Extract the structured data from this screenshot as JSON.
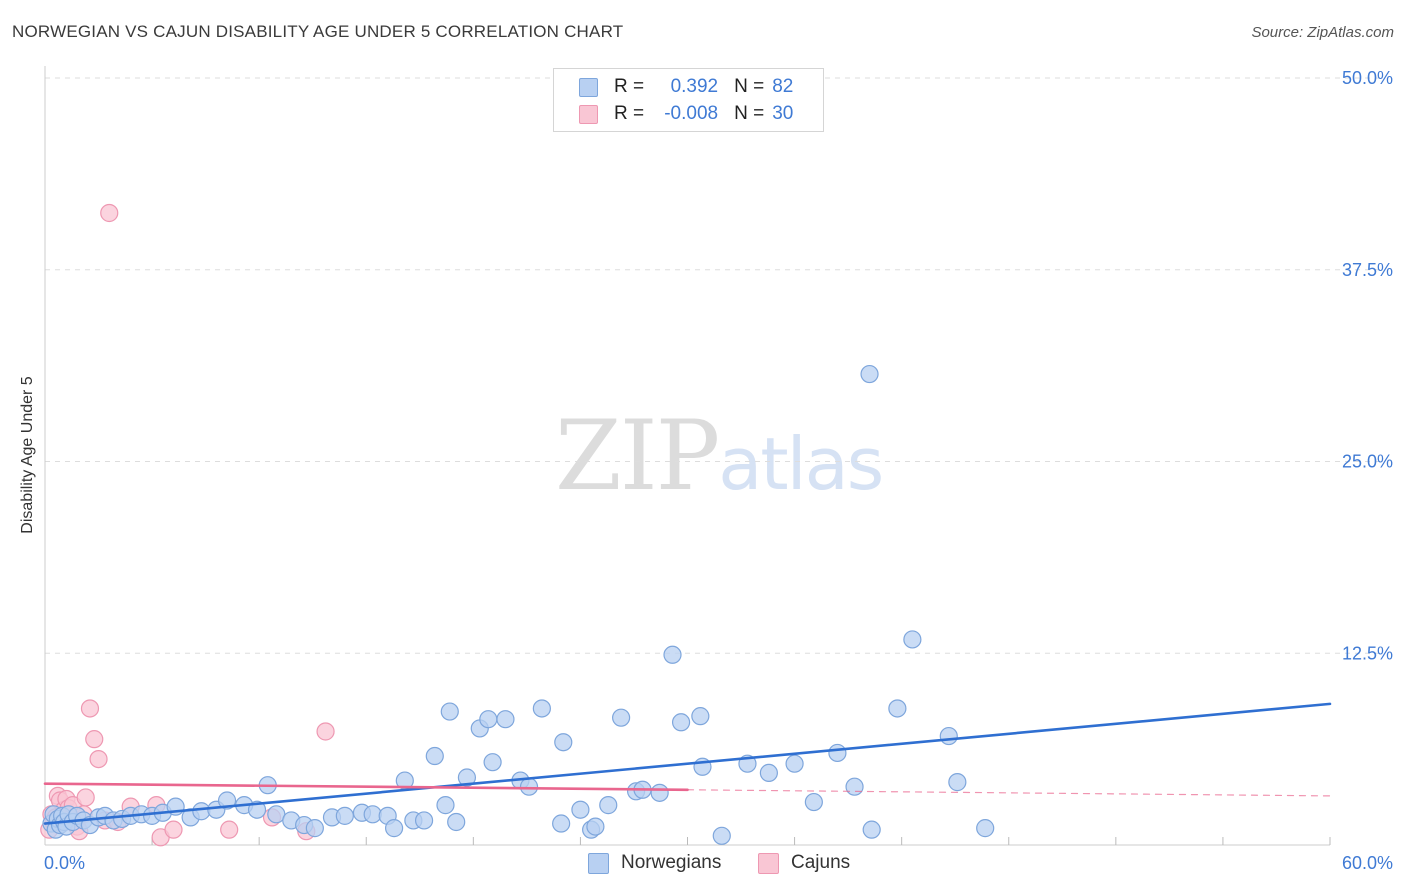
{
  "header": {
    "title": "NORWEGIAN VS CAJUN DISABILITY AGE UNDER 5 CORRELATION CHART",
    "source": "Source: ZipAtlas.com"
  },
  "watermark": {
    "zip": "ZIP",
    "atlas": "atlas"
  },
  "legend": {
    "r_label": "R =",
    "n_label": "N =",
    "norwegians": {
      "r": "0.392",
      "n": "82"
    },
    "cajuns": {
      "r": "-0.008",
      "n": "30"
    }
  },
  "colors": {
    "norwegian_fill": "#b8d0f2",
    "norwegian_stroke": "#7ea6dc",
    "norwegian_line": "#2f6fd1",
    "cajun_fill": "#f9c6d4",
    "cajun_stroke": "#ee98b2",
    "cajun_line": "#e9668e",
    "tick_color": "#3f7ad4",
    "grid": "#dddddd"
  },
  "chart_data": {
    "type": "scatter",
    "title": "NORWEGIAN VS CAJUN DISABILITY AGE UNDER 5 CORRELATION CHART",
    "xlabel": "",
    "ylabel": "Disability Age Under 5",
    "xlim": [
      0,
      60
    ],
    "ylim": [
      0,
      50
    ],
    "x_tick_labels": [
      {
        "value": 0,
        "label": "0.0%"
      },
      {
        "value": 60,
        "label": "60.0%"
      }
    ],
    "y_tick_labels": [
      {
        "value": 12.5,
        "label": "12.5%"
      },
      {
        "value": 25,
        "label": "25.0%"
      },
      {
        "value": 37.5,
        "label": "37.5%"
      },
      {
        "value": 50,
        "label": "50.0%"
      }
    ],
    "series": [
      {
        "name": "Norwegians",
        "points": [
          [
            0.3,
            1.4
          ],
          [
            0.4,
            2.0
          ],
          [
            0.5,
            1.0
          ],
          [
            0.6,
            1.7
          ],
          [
            0.7,
            1.3
          ],
          [
            0.8,
            1.9
          ],
          [
            0.9,
            1.5
          ],
          [
            1.0,
            1.2
          ],
          [
            1.1,
            2.0
          ],
          [
            1.3,
            1.5
          ],
          [
            1.5,
            1.9
          ],
          [
            1.8,
            1.6
          ],
          [
            2.1,
            1.3
          ],
          [
            2.5,
            1.8
          ],
          [
            2.8,
            1.9
          ],
          [
            3.2,
            1.6
          ],
          [
            3.6,
            1.7
          ],
          [
            4.0,
            1.9
          ],
          [
            4.5,
            2.0
          ],
          [
            5.0,
            1.9
          ],
          [
            5.5,
            2.1
          ],
          [
            6.1,
            2.5
          ],
          [
            6.8,
            1.8
          ],
          [
            7.3,
            2.2
          ],
          [
            8.0,
            2.3
          ],
          [
            8.5,
            2.9
          ],
          [
            9.3,
            2.6
          ],
          [
            9.9,
            2.3
          ],
          [
            10.4,
            3.9
          ],
          [
            10.8,
            2.0
          ],
          [
            11.5,
            1.6
          ],
          [
            12.1,
            1.3
          ],
          [
            12.6,
            1.1
          ],
          [
            13.4,
            1.8
          ],
          [
            14.0,
            1.9
          ],
          [
            14.8,
            2.1
          ],
          [
            15.3,
            2.0
          ],
          [
            16.0,
            1.9
          ],
          [
            16.3,
            1.1
          ],
          [
            16.8,
            4.2
          ],
          [
            17.2,
            1.6
          ],
          [
            17.7,
            1.6
          ],
          [
            18.2,
            5.8
          ],
          [
            18.7,
            2.6
          ],
          [
            18.9,
            8.7
          ],
          [
            19.2,
            1.5
          ],
          [
            19.7,
            4.4
          ],
          [
            20.3,
            7.6
          ],
          [
            20.7,
            8.2
          ],
          [
            20.9,
            5.4
          ],
          [
            21.5,
            8.2
          ],
          [
            22.2,
            4.2
          ],
          [
            22.6,
            3.8
          ],
          [
            23.2,
            8.9
          ],
          [
            24.1,
            1.4
          ],
          [
            24.2,
            6.7
          ],
          [
            25.0,
            2.3
          ],
          [
            25.5,
            1.0
          ],
          [
            25.7,
            1.2
          ],
          [
            26.3,
            2.6
          ],
          [
            26.9,
            8.3
          ],
          [
            27.6,
            3.5
          ],
          [
            27.9,
            3.6
          ],
          [
            28.7,
            3.4
          ],
          [
            29.3,
            12.4
          ],
          [
            29.7,
            8.0
          ],
          [
            30.6,
            8.4
          ],
          [
            30.7,
            5.1
          ],
          [
            31.6,
            0.6
          ],
          [
            32.8,
            5.3
          ],
          [
            33.8,
            4.7
          ],
          [
            35.0,
            5.3
          ],
          [
            35.9,
            2.8
          ],
          [
            37.0,
            6.0
          ],
          [
            37.8,
            3.8
          ],
          [
            38.5,
            30.7
          ],
          [
            38.6,
            1.0
          ],
          [
            39.8,
            8.9
          ],
          [
            40.5,
            13.4
          ],
          [
            42.2,
            7.1
          ],
          [
            42.6,
            4.1
          ],
          [
            43.9,
            1.1
          ]
        ]
      },
      {
        "name": "Cajuns",
        "points": [
          [
            0.2,
            1.0
          ],
          [
            0.3,
            2.0
          ],
          [
            0.4,
            1.5
          ],
          [
            0.5,
            1.8
          ],
          [
            0.6,
            3.2
          ],
          [
            0.7,
            2.9
          ],
          [
            0.8,
            1.5
          ],
          [
            0.9,
            2.3
          ],
          [
            1.0,
            3.0
          ],
          [
            1.1,
            2.4
          ],
          [
            1.2,
            1.7
          ],
          [
            1.3,
            2.6
          ],
          [
            1.5,
            1.2
          ],
          [
            1.6,
            0.9
          ],
          [
            1.8,
            2.0
          ],
          [
            1.9,
            3.1
          ],
          [
            2.1,
            8.9
          ],
          [
            2.3,
            6.9
          ],
          [
            2.5,
            5.6
          ],
          [
            2.8,
            1.6
          ],
          [
            3.0,
            41.2
          ],
          [
            3.4,
            1.5
          ],
          [
            4.0,
            2.5
          ],
          [
            5.2,
            2.6
          ],
          [
            5.4,
            0.5
          ],
          [
            6.0,
            1.0
          ],
          [
            8.6,
            1.0
          ],
          [
            10.6,
            1.8
          ],
          [
            12.2,
            0.9
          ],
          [
            13.1,
            7.4
          ]
        ]
      }
    ],
    "trendlines": [
      {
        "series": "Norwegians",
        "x": [
          0,
          60
        ],
        "y": [
          1.4,
          9.2
        ],
        "style": "solid"
      },
      {
        "series": "Cajuns",
        "x": [
          0,
          30
        ],
        "y": [
          4.0,
          3.6
        ],
        "style": "solid"
      },
      {
        "series": "Cajuns",
        "x": [
          30,
          60
        ],
        "y": [
          3.6,
          3.2
        ],
        "style": "dashed"
      }
    ],
    "legend_position": "bottom-center"
  }
}
